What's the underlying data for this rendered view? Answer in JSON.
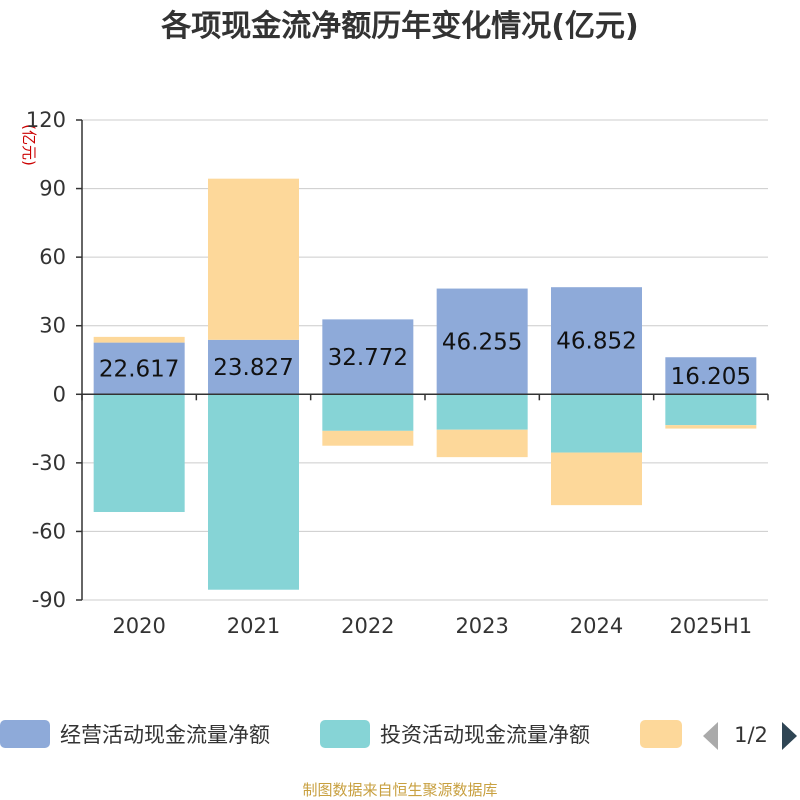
{
  "chart_data": {
    "type": "bar",
    "stacked": true,
    "title": "各项现金流净额历年变化情况(亿元)",
    "unit": "(亿元)",
    "categories": [
      "2020",
      "2021",
      "2022",
      "2023",
      "2024",
      "2025H1"
    ],
    "ylim": [
      -90,
      120
    ],
    "yticks": [
      120,
      90,
      60,
      30,
      0,
      -30,
      -60,
      -90
    ],
    "grid": true,
    "legend_position": "bottom",
    "series": [
      {
        "name": "经营活动现金流量净额",
        "color": "#8eaad9",
        "values": [
          22.617,
          23.827,
          32.772,
          46.255,
          46.852,
          16.205
        ],
        "labels": [
          "22.617",
          "23.827",
          "32.772",
          "46.255",
          "46.852",
          "16.205"
        ]
      },
      {
        "name": "投资活动现金流量净额",
        "color": "#86d4d6",
        "values": [
          -51.5,
          -85.5,
          -16,
          -15.5,
          -25.5,
          -13.5
        ]
      },
      {
        "color": "#fdd89a",
        "values": [
          2.5,
          70.5,
          -6.5,
          -12,
          -23,
          -1.5
        ]
      }
    ],
    "legend_page": "1/2",
    "source": "制图数据来自恒生聚源数据库"
  }
}
